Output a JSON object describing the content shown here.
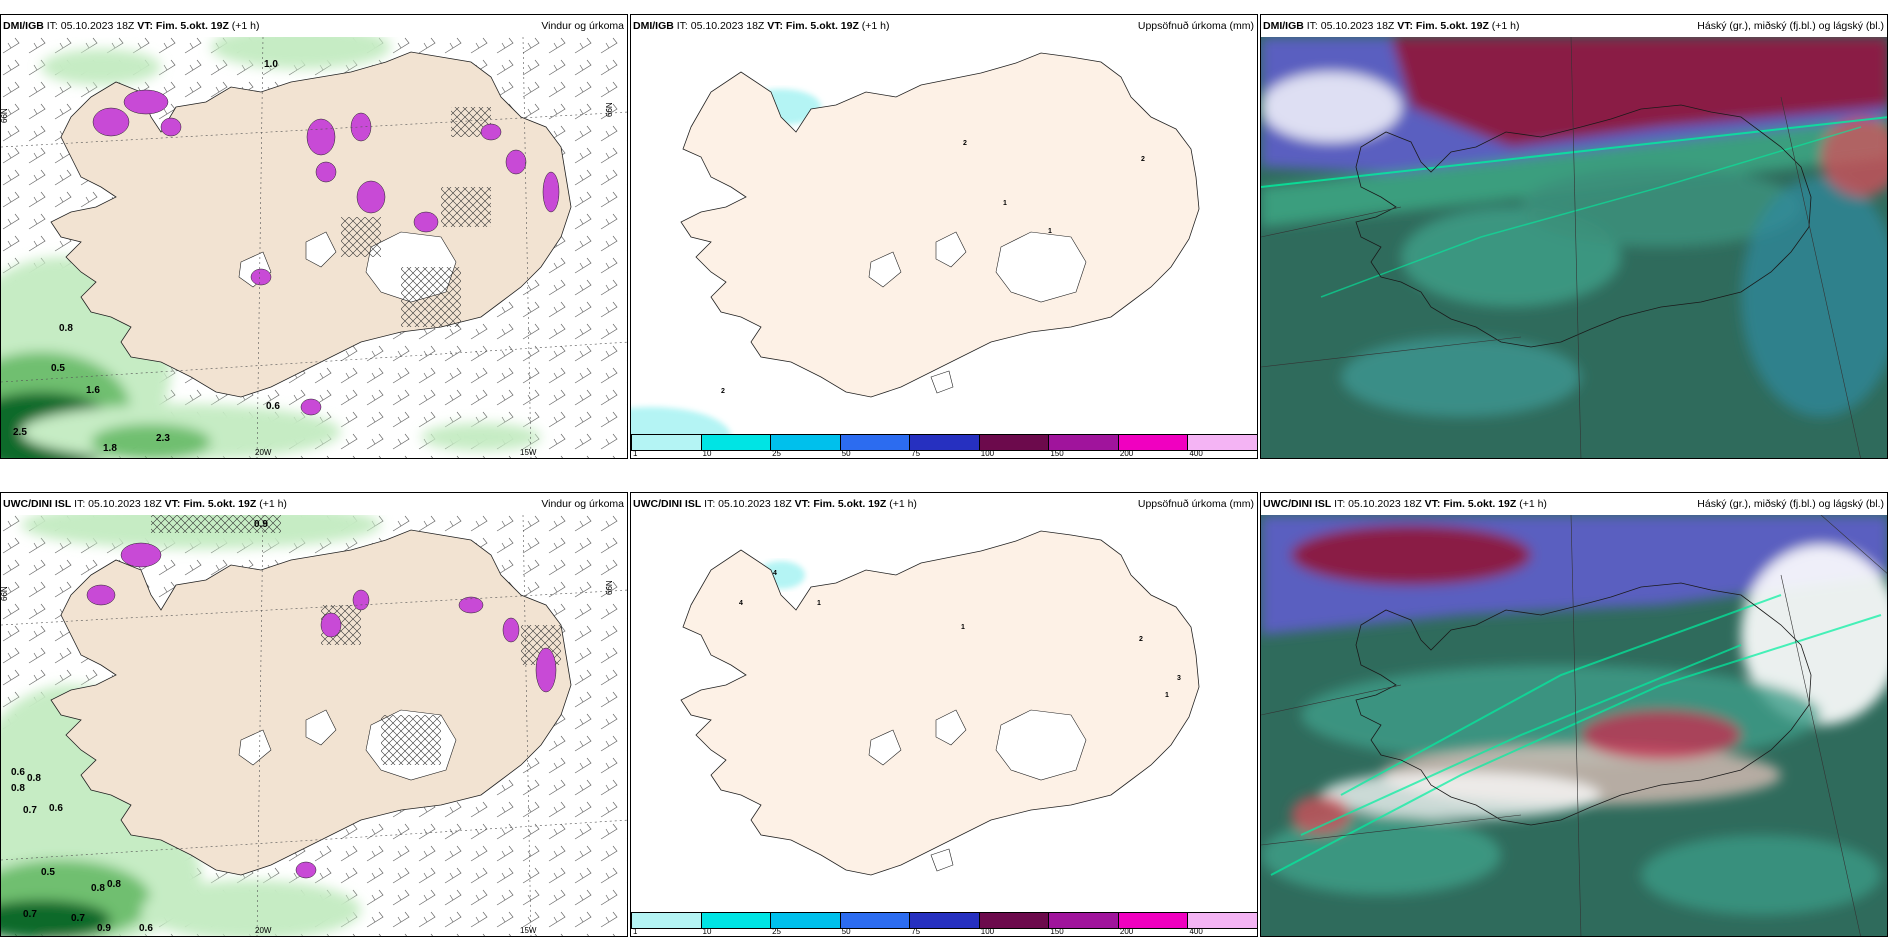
{
  "panels": [
    {
      "model": "DMI/IGB",
      "it": "IT: 05.10.2023 18Z",
      "vt": "VT: Fim. 5.okt. 19Z",
      "lead": "(+1 h)",
      "product": "Vindur og úrkoma"
    },
    {
      "model": "DMI/IGB",
      "it": "IT: 05.10.2023 18Z",
      "vt": "VT: Fim. 5.okt. 19Z",
      "lead": "(+1 h)",
      "product": "Uppsöfnuð úrkoma (mm)"
    },
    {
      "model": "DMI/IGB",
      "it": "IT: 05.10.2023 18Z",
      "vt": "VT: Fim. 5.okt. 19Z",
      "lead": "(+1 h)",
      "product": "Háský (gr.), miðský (fj.bl.) og lágský (bl.)"
    },
    {
      "model": "UWC/DINI ISL",
      "it": "IT: 05.10.2023 18Z",
      "vt": "VT: Fim. 5.okt. 19Z",
      "lead": "(+1 h)",
      "product": "Vindur og úrkoma"
    },
    {
      "model": "UWC/DINI ISL",
      "it": "IT: 05.10.2023 18Z",
      "vt": "VT: Fim. 5.okt. 19Z",
      "lead": "(+1 h)",
      "product": "Uppsöfnuð úrkoma (mm)"
    },
    {
      "model": "UWC/DINI ISL",
      "it": "IT: 05.10.2023 18Z",
      "vt": "VT: Fim. 5.okt. 19Z",
      "lead": "(+1 h)",
      "product": "Háský (gr.), miðský (fj.bl.) og lágský (bl.)"
    }
  ],
  "graticule_labels": {
    "lat": "66N",
    "lon_west": "20W",
    "lon_east": "15W"
  },
  "colorbar": {
    "labels": [
      "1",
      "10",
      "25",
      "50",
      "75",
      "100",
      "150",
      "200",
      "400"
    ],
    "colors": [
      "#b4f4f4",
      "#00e4e4",
      "#00c0ec",
      "#2c6cf0",
      "#2630c0",
      "#6c0a4c",
      "#a0149c",
      "#f000c0",
      "#f4b4f4"
    ]
  },
  "precip_values_top": [
    "1.0",
    "0.8",
    "0.5",
    "1.6",
    "2.5",
    "1.8",
    "2.3",
    "0.6"
  ],
  "precip_values_bottom": [
    "0.9",
    "0.6",
    "0.8",
    "0.8",
    "0.7",
    "0.6",
    "0.5",
    "0.8",
    "0.8",
    "0.7",
    "0.7",
    "0.9",
    "0.6"
  ],
  "accum_values_top": [
    "2",
    "2",
    "1",
    "1",
    "2"
  ],
  "accum_values_bottom": [
    "4",
    "4",
    "1",
    "1",
    "2",
    "3",
    "1"
  ],
  "colors": {
    "land": "#f2e3d2",
    "precip_light": "#c6ecc4",
    "precip_mid": "#6fbf70",
    "precip_dark": "#0d6b2c",
    "convective": "#c84ad6"
  }
}
